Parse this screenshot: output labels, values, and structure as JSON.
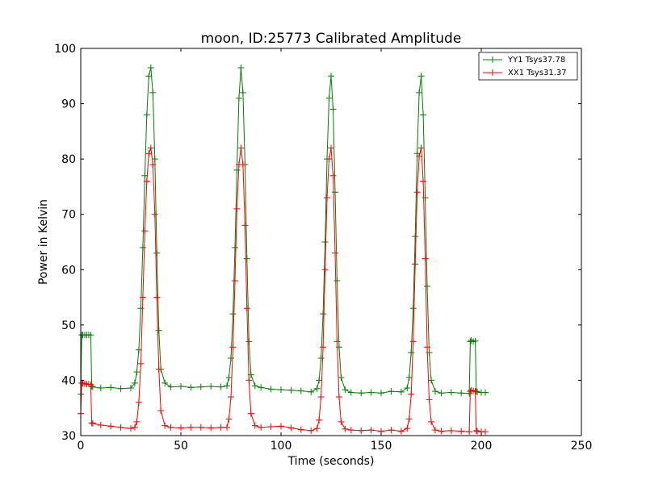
{
  "chart_data": {
    "type": "line",
    "title": "moon, ID:25773 Calibrated Amplitude",
    "xlabel": "Time (seconds)",
    "ylabel": "Power in Kelvin",
    "xlim": [
      0,
      250
    ],
    "ylim": [
      30,
      100
    ],
    "xticks": [
      0,
      50,
      100,
      150,
      200,
      250
    ],
    "yticks": [
      30,
      40,
      50,
      60,
      70,
      80,
      90,
      100
    ],
    "grid": false,
    "legend_position": "top-right",
    "marker": "+",
    "series": [
      {
        "name": "YY1 Tsys37.78",
        "color": "#008000",
        "x": [
          0,
          0.5,
          1,
          2,
          3,
          4,
          5,
          5.5,
          6,
          10,
          15,
          20,
          25,
          27,
          28,
          29,
          30,
          31,
          32,
          33,
          34,
          35,
          36,
          37,
          38,
          39,
          40,
          42,
          45,
          50,
          55,
          60,
          65,
          70,
          73,
          74,
          75,
          76,
          77,
          78,
          79,
          80,
          81,
          82,
          83,
          84,
          85,
          87,
          90,
          95,
          100,
          105,
          110,
          115,
          118,
          119,
          120,
          121,
          122,
          123,
          124,
          125,
          126,
          127,
          128,
          129,
          130,
          132,
          135,
          140,
          145,
          150,
          155,
          160,
          163,
          164,
          165,
          166,
          167,
          168,
          169,
          170,
          171,
          172,
          173,
          174,
          175,
          177,
          180,
          185,
          190,
          194,
          194.5,
          195,
          196,
          197,
          197.5,
          198,
          200,
          202
        ],
        "y": [
          37.5,
          48.2,
          48.2,
          48.2,
          48.2,
          48.2,
          48.2,
          38.9,
          38.8,
          38.6,
          38.7,
          38.5,
          38.6,
          39.5,
          41.5,
          45.5,
          53.0,
          64.0,
          77.0,
          88.0,
          95.0,
          96.5,
          92.0,
          80.0,
          63.0,
          49.0,
          42.0,
          39.5,
          38.8,
          38.9,
          38.7,
          38.8,
          38.9,
          38.8,
          39.0,
          40.5,
          44.0,
          52.0,
          64.0,
          78.0,
          91.0,
          96.5,
          92.0,
          79.0,
          62.0,
          47.0,
          41.0,
          39.0,
          38.7,
          38.4,
          38.3,
          38.2,
          38.1,
          37.9,
          38.5,
          40.0,
          44.0,
          52.0,
          65.0,
          80.0,
          91.0,
          95.0,
          89.0,
          74.0,
          58.0,
          46.0,
          40.5,
          38.3,
          37.8,
          37.7,
          37.8,
          37.7,
          38.0,
          37.9,
          38.6,
          40.5,
          45.0,
          53.0,
          66.0,
          81.0,
          92.0,
          95.0,
          88.0,
          73.0,
          57.0,
          45.0,
          40.0,
          38.0,
          37.7,
          37.8,
          37.7,
          37.6,
          47.0,
          47.2,
          47.0,
          47.1,
          38.0,
          37.9,
          37.8,
          37.8
        ]
      },
      {
        "name": "XX1 Tsys31.37",
        "color": "#ff0000",
        "x": [
          0,
          0.5,
          1,
          2,
          3,
          4,
          5,
          5.5,
          6,
          10,
          15,
          20,
          25,
          27,
          28,
          29,
          30,
          31,
          32,
          33,
          34,
          35,
          36,
          37,
          38,
          39,
          40,
          42,
          45,
          50,
          55,
          60,
          65,
          70,
          73,
          74,
          75,
          76,
          77,
          78,
          79,
          80,
          81,
          82,
          83,
          84,
          85,
          87,
          90,
          95,
          100,
          105,
          110,
          115,
          118,
          119,
          120,
          121,
          122,
          123,
          124,
          125,
          126,
          127,
          128,
          129,
          130,
          132,
          135,
          140,
          145,
          150,
          155,
          160,
          163,
          164,
          165,
          166,
          167,
          168,
          169,
          170,
          171,
          172,
          173,
          174,
          175,
          177,
          180,
          185,
          190,
          194,
          194.5,
          195,
          196,
          197,
          197.5,
          198,
          200,
          202
        ],
        "y": [
          34.0,
          39.5,
          39.5,
          39.4,
          39.3,
          39.3,
          39.2,
          32.3,
          32.2,
          31.9,
          31.7,
          31.5,
          31.3,
          31.5,
          32.5,
          36.0,
          43.0,
          55.0,
          67.0,
          76.0,
          81.0,
          82.0,
          79.0,
          70.0,
          55.0,
          42.0,
          34.5,
          31.8,
          31.5,
          31.4,
          31.5,
          31.5,
          31.4,
          31.5,
          31.5,
          33.0,
          37.0,
          46.0,
          58.0,
          71.0,
          79.0,
          82.0,
          79.0,
          68.0,
          53.0,
          40.0,
          34.0,
          31.8,
          31.5,
          31.6,
          31.7,
          31.4,
          31.1,
          30.9,
          31.3,
          32.8,
          37.0,
          46.0,
          60.0,
          73.0,
          80.0,
          82.0,
          77.0,
          63.0,
          47.0,
          37.0,
          32.5,
          31.2,
          31.0,
          30.9,
          31.0,
          30.8,
          31.0,
          30.8,
          31.3,
          33.0,
          37.5,
          47.0,
          61.0,
          74.0,
          80.5,
          82.0,
          76.0,
          62.0,
          46.0,
          36.5,
          32.5,
          31.0,
          30.8,
          30.9,
          30.8,
          30.7,
          38.0,
          38.2,
          38.1,
          38.0,
          30.9,
          30.8,
          30.7,
          30.7
        ]
      }
    ]
  }
}
